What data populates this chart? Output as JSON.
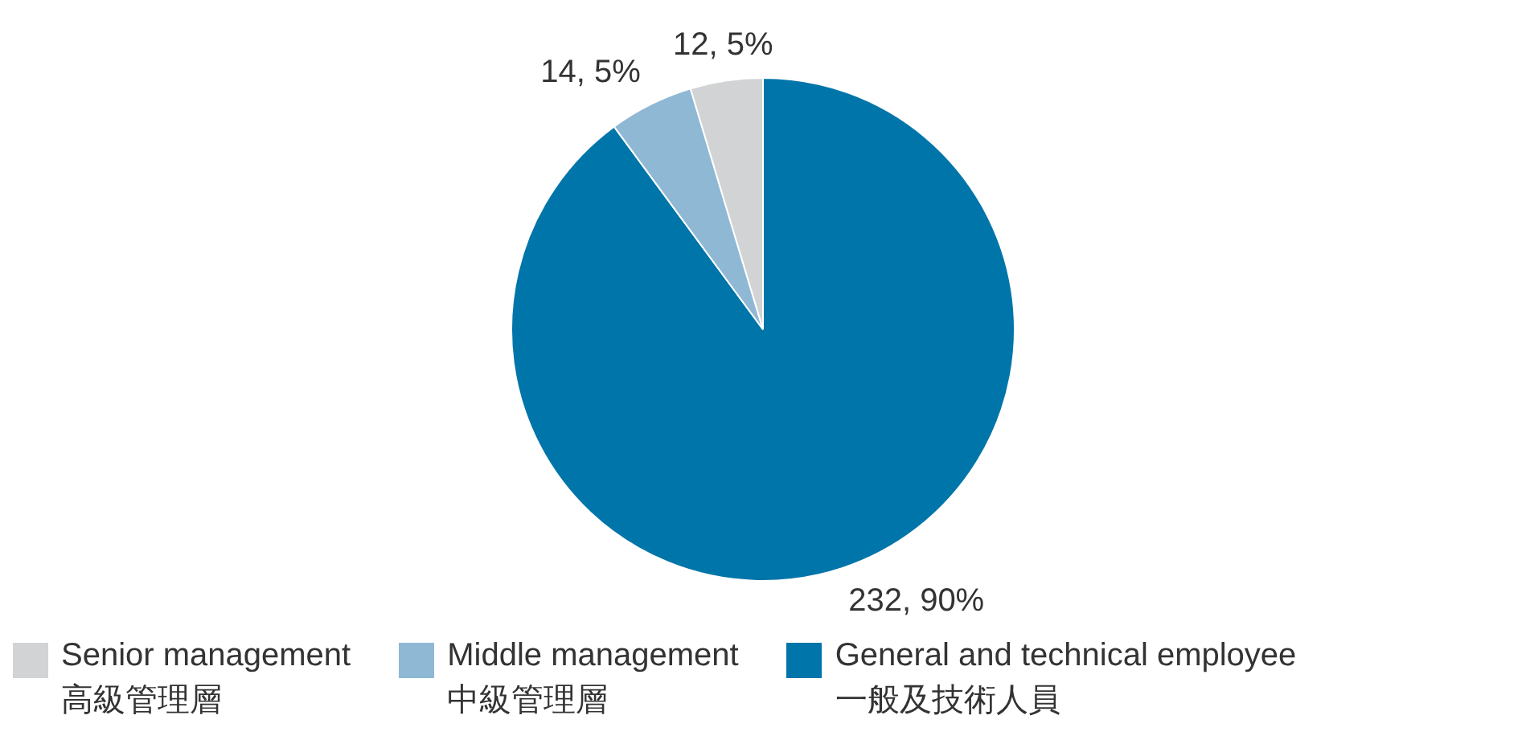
{
  "chart_data": {
    "type": "pie",
    "categories": [
      "General and technical employee\n一般及技術人員",
      "Middle management\n中級管理層",
      "Senior management\n高級管理層"
    ],
    "values": [
      232,
      14,
      12
    ],
    "colors": [
      "#0075a9",
      "#8fb8d5",
      "#d1d3d5"
    ],
    "value_labels": [
      "232, 90%",
      "14, 5%",
      "12, 5%"
    ],
    "legend": "bottom"
  }
}
